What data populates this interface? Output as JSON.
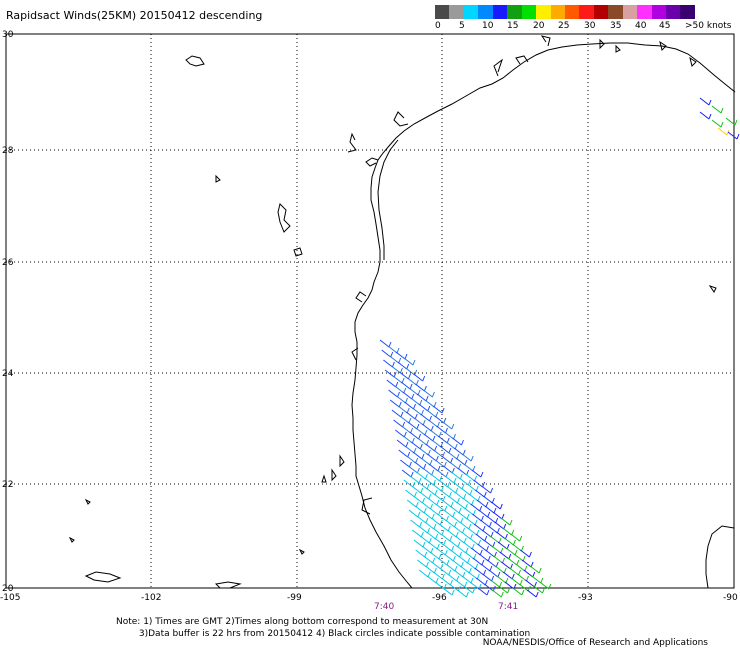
{
  "title": "Rapidsact Winds(25KM) 20150412 descending",
  "legend": {
    "colors": [
      "#4a4a4a",
      "#9a9a9a",
      "#00d6ff",
      "#0088ff",
      "#1a1aff",
      "#12a012",
      "#00e000",
      "#ffee00",
      "#ffaa00",
      "#ff5a00",
      "#ff1a1a",
      "#b20000",
      "#8a4a2a",
      "#d8a0a0",
      "#ff30ff",
      "#b000e0",
      "#6a00aa",
      "#3a0070"
    ],
    "labels": [
      "0",
      "5",
      "10",
      "15",
      "20",
      "25",
      "30",
      "35",
      "40",
      "45",
      ">50 knots"
    ]
  },
  "map": {
    "lat_labels": [
      "30",
      "28",
      "26",
      "24",
      "22",
      "20"
    ],
    "lon_labels": [
      "-105",
      "-102",
      "-99",
      "-96",
      "-93",
      "-90"
    ],
    "time_labels": [
      "7:40",
      "7:41"
    ],
    "time_color": "#8a1a8a"
  },
  "notes": [
    "Note: 1) Times are GMT 2)Times along bottom correspond to measurement at 30N",
    "        3)Data buffer is 22 hrs from 20150412 4) Black circles indicate possible contamination"
  ],
  "credit": "NOAA/NESDIS/Office of Research and Applications"
}
